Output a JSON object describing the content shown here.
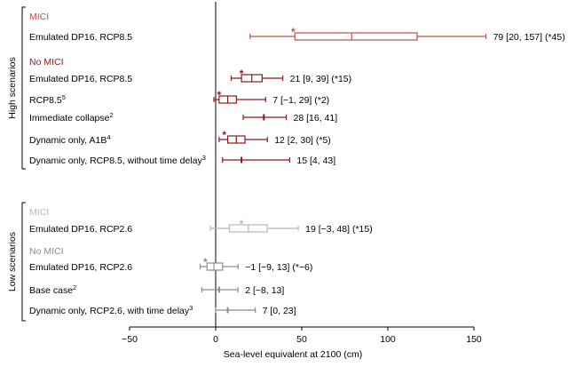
{
  "chart_data": {
    "type": "box",
    "xlabel": "Sea-level equivalent at 2100 (cm)",
    "xlim": [
      -50,
      150
    ],
    "xticks": [
      -50,
      0,
      50,
      100,
      150
    ],
    "grid": false,
    "zero_line": true,
    "colors": {
      "high": "#8b1a1a",
      "high_light": "#c0504d",
      "low": "#8c8c8c",
      "low_light": "#b8b8b8",
      "text": "#000000"
    },
    "groups": [
      {
        "label": "High scenarios",
        "sections": [
          {
            "label": "MICI",
            "tone": "high_light",
            "rows": [
              {
                "label": "Emulated DP16, RCP8.5",
                "sup": "",
                "median": 79,
                "q_low": 46,
                "q_high": 117,
                "min": 20,
                "max": 157,
                "star": 45,
                "value_text": "79 [20, 157] (*45)"
              }
            ]
          },
          {
            "label": "No MICI",
            "tone": "high",
            "rows": [
              {
                "label": "Emulated DP16, RCP8.5",
                "sup": "",
                "median": 21,
                "q_low": 15,
                "q_high": 27,
                "min": 9,
                "max": 39,
                "star": 15,
                "value_text": "21 [9, 39] (*15)"
              },
              {
                "label": "RCP8.5",
                "sup": "5",
                "median": 7,
                "q_low": 2,
                "q_high": 12,
                "min": -1,
                "max": 29,
                "star": 2,
                "value_text": "7 [−1, 29] (*2)"
              },
              {
                "label": "Immediate collapse",
                "sup": "2",
                "median": 28,
                "q_low": null,
                "q_high": null,
                "min": 16,
                "max": 41,
                "star": null,
                "value_text": "28 [16, 41]"
              },
              {
                "label": "Dynamic only, A1B",
                "sup": "4",
                "median": 12,
                "q_low": 7,
                "q_high": 17,
                "min": 2,
                "max": 30,
                "star": 5,
                "value_text": "12 [2, 30] (*5)"
              },
              {
                "label": "Dynamic only, RCP8.5, without time delay",
                "sup": "3",
                "median": 15,
                "q_low": null,
                "q_high": null,
                "min": 4,
                "max": 43,
                "star": null,
                "value_text": "15 [4, 43]"
              }
            ]
          }
        ]
      },
      {
        "label": "Low scenarios",
        "sections": [
          {
            "label": "MICI",
            "tone": "low_light",
            "rows": [
              {
                "label": "Emulated DP16, RCP2.6",
                "sup": "",
                "median": 19,
                "q_low": 8,
                "q_high": 30,
                "min": -3,
                "max": 48,
                "star": 15,
                "value_text": "19 [−3, 48] (*15)"
              }
            ]
          },
          {
            "label": "No MICI",
            "tone": "low",
            "rows": [
              {
                "label": "Emulated DP16, RCP2.6",
                "sup": "",
                "median": -1,
                "q_low": -5,
                "q_high": 4,
                "min": -9,
                "max": 13,
                "star": -6,
                "value_text": "−1 [−9, 13] (*−6)"
              },
              {
                "label": "Base case",
                "sup": "2",
                "median": 2,
                "q_low": null,
                "q_high": null,
                "min": -8,
                "max": 13,
                "star": null,
                "value_text": "2 [−8, 13]"
              },
              {
                "label": "Dynamic only, RCP2.6, with time delay",
                "sup": "3",
                "median": 7,
                "q_low": null,
                "q_high": null,
                "min": 0,
                "max": 23,
                "star": null,
                "value_text": "7 [0, 23]"
              }
            ]
          }
        ]
      }
    ]
  }
}
